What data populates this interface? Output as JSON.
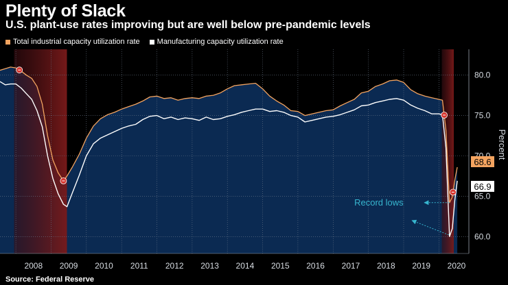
{
  "header": {
    "title": "Plenty of Slack",
    "subtitle": "U.S. plant-use rates improving but are well below pre-pandemic levels"
  },
  "source": "Source: Federal Reserve",
  "colors": {
    "background": "#000000",
    "plot_fill": "#0b2a52",
    "total_line": "#f4a460",
    "manufacturing_line": "#ffffff",
    "recession_band": "#7a1a1a",
    "annotation": "#37b6cf",
    "marker": "#d6362f"
  },
  "chart_data": {
    "type": "line",
    "title": "Plenty of Slack",
    "subtitle": "U.S. plant-use rates improving but are well below pre-pandemic levels",
    "ylabel": "Percent",
    "xlabel": "",
    "ylim": [
      57.9,
      83.2
    ],
    "xlim": [
      2007.55,
      2020.85
    ],
    "yticks": [
      60.0,
      65.0,
      70.0,
      75.0,
      80.0
    ],
    "ytick_labels": [
      "60.0",
      "65.0",
      "70.0",
      "75.0",
      "80.0"
    ],
    "x_categories": [
      "2008",
      "2009",
      "2010",
      "2011",
      "2012",
      "2013",
      "2014",
      "2015",
      "2016",
      "2017",
      "2018",
      "2019",
      "2020"
    ],
    "grid": true,
    "legend_position": "top-left",
    "recessions": [
      {
        "start": 2007.95,
        "end": 2009.45
      },
      {
        "start": 2020.08,
        "end": 2020.42
      }
    ],
    "series": [
      {
        "name": "Total industrial capacity utilization rate",
        "color": "#f4a460",
        "points": [
          [
            2007.55,
            80.6
          ],
          [
            2007.7,
            80.8
          ],
          [
            2007.85,
            81.0
          ],
          [
            2008.0,
            80.9
          ],
          [
            2008.15,
            80.5
          ],
          [
            2008.3,
            80.0
          ],
          [
            2008.45,
            79.6
          ],
          [
            2008.6,
            78.6
          ],
          [
            2008.75,
            76.4
          ],
          [
            2008.9,
            72.5
          ],
          [
            2009.05,
            69.5
          ],
          [
            2009.2,
            67.9
          ],
          [
            2009.35,
            66.9
          ],
          [
            2009.45,
            67.5
          ],
          [
            2009.6,
            68.6
          ],
          [
            2009.8,
            70.2
          ],
          [
            2010.0,
            72.2
          ],
          [
            2010.2,
            73.7
          ],
          [
            2010.4,
            74.6
          ],
          [
            2010.6,
            75.1
          ],
          [
            2010.8,
            75.4
          ],
          [
            2011.0,
            75.8
          ],
          [
            2011.2,
            76.1
          ],
          [
            2011.4,
            76.4
          ],
          [
            2011.6,
            76.8
          ],
          [
            2011.8,
            77.3
          ],
          [
            2012.0,
            77.4
          ],
          [
            2012.2,
            77.1
          ],
          [
            2012.4,
            77.2
          ],
          [
            2012.6,
            76.9
          ],
          [
            2012.8,
            77.1
          ],
          [
            2013.0,
            77.2
          ],
          [
            2013.2,
            77.1
          ],
          [
            2013.4,
            77.4
          ],
          [
            2013.6,
            77.5
          ],
          [
            2013.8,
            77.8
          ],
          [
            2014.0,
            78.3
          ],
          [
            2014.2,
            78.7
          ],
          [
            2014.4,
            78.8
          ],
          [
            2014.6,
            78.9
          ],
          [
            2014.8,
            79.0
          ],
          [
            2015.0,
            78.3
          ],
          [
            2015.2,
            77.4
          ],
          [
            2015.4,
            76.8
          ],
          [
            2015.6,
            76.3
          ],
          [
            2015.8,
            75.6
          ],
          [
            2016.0,
            75.5
          ],
          [
            2016.2,
            75.0
          ],
          [
            2016.4,
            75.2
          ],
          [
            2016.6,
            75.4
          ],
          [
            2016.8,
            75.6
          ],
          [
            2017.0,
            75.7
          ],
          [
            2017.2,
            76.2
          ],
          [
            2017.4,
            76.6
          ],
          [
            2017.6,
            77.0
          ],
          [
            2017.8,
            77.8
          ],
          [
            2018.0,
            78.0
          ],
          [
            2018.2,
            78.6
          ],
          [
            2018.4,
            78.9
          ],
          [
            2018.6,
            79.3
          ],
          [
            2018.8,
            79.4
          ],
          [
            2019.0,
            79.1
          ],
          [
            2019.2,
            78.2
          ],
          [
            2019.4,
            77.7
          ],
          [
            2019.6,
            77.4
          ],
          [
            2019.8,
            77.2
          ],
          [
            2020.0,
            77.0
          ],
          [
            2020.1,
            76.9
          ],
          [
            2020.2,
            73.2
          ],
          [
            2020.3,
            64.2
          ],
          [
            2020.38,
            64.9
          ],
          [
            2020.45,
            67.0
          ],
          [
            2020.52,
            68.6
          ]
        ]
      },
      {
        "name": "Manufacturing capacity utilization rate",
        "color": "#ffffff",
        "points": [
          [
            2007.55,
            79.2
          ],
          [
            2007.7,
            78.8
          ],
          [
            2007.85,
            78.9
          ],
          [
            2008.0,
            78.9
          ],
          [
            2008.15,
            78.4
          ],
          [
            2008.3,
            77.7
          ],
          [
            2008.45,
            77.0
          ],
          [
            2008.6,
            75.6
          ],
          [
            2008.75,
            73.6
          ],
          [
            2008.9,
            70.0
          ],
          [
            2009.05,
            67.2
          ],
          [
            2009.2,
            65.3
          ],
          [
            2009.35,
            64.0
          ],
          [
            2009.45,
            63.7
          ],
          [
            2009.6,
            65.4
          ],
          [
            2009.8,
            67.6
          ],
          [
            2010.0,
            70.0
          ],
          [
            2010.2,
            71.5
          ],
          [
            2010.4,
            72.2
          ],
          [
            2010.6,
            72.6
          ],
          [
            2010.8,
            73.0
          ],
          [
            2011.0,
            73.4
          ],
          [
            2011.2,
            73.7
          ],
          [
            2011.4,
            73.9
          ],
          [
            2011.6,
            74.5
          ],
          [
            2011.8,
            74.9
          ],
          [
            2012.0,
            75.0
          ],
          [
            2012.2,
            74.6
          ],
          [
            2012.4,
            74.8
          ],
          [
            2012.6,
            74.5
          ],
          [
            2012.8,
            74.7
          ],
          [
            2013.0,
            74.6
          ],
          [
            2013.2,
            74.4
          ],
          [
            2013.4,
            74.8
          ],
          [
            2013.6,
            74.5
          ],
          [
            2013.8,
            74.6
          ],
          [
            2014.0,
            74.9
          ],
          [
            2014.2,
            75.1
          ],
          [
            2014.4,
            75.4
          ],
          [
            2014.6,
            75.6
          ],
          [
            2014.8,
            75.8
          ],
          [
            2015.0,
            75.8
          ],
          [
            2015.2,
            75.5
          ],
          [
            2015.4,
            75.6
          ],
          [
            2015.6,
            75.4
          ],
          [
            2015.8,
            75.0
          ],
          [
            2016.0,
            74.8
          ],
          [
            2016.2,
            74.2
          ],
          [
            2016.4,
            74.4
          ],
          [
            2016.6,
            74.6
          ],
          [
            2016.8,
            74.8
          ],
          [
            2017.0,
            74.9
          ],
          [
            2017.2,
            75.1
          ],
          [
            2017.4,
            75.4
          ],
          [
            2017.6,
            75.7
          ],
          [
            2017.8,
            76.2
          ],
          [
            2018.0,
            76.3
          ],
          [
            2018.2,
            76.6
          ],
          [
            2018.4,
            76.8
          ],
          [
            2018.6,
            77.0
          ],
          [
            2018.8,
            77.1
          ],
          [
            2019.0,
            76.9
          ],
          [
            2019.2,
            76.3
          ],
          [
            2019.4,
            75.9
          ],
          [
            2019.6,
            75.6
          ],
          [
            2019.8,
            75.2
          ],
          [
            2020.0,
            75.2
          ],
          [
            2020.1,
            75.1
          ],
          [
            2020.2,
            71.0
          ],
          [
            2020.3,
            60.0
          ],
          [
            2020.38,
            61.0
          ],
          [
            2020.45,
            64.5
          ],
          [
            2020.52,
            66.9
          ]
        ]
      }
    ],
    "end_labels": [
      {
        "text": "68.6",
        "value": 68.6,
        "series": 0
      },
      {
        "text": "66.9",
        "value": 66.9,
        "series": 1
      }
    ],
    "annotations": [
      {
        "text": "Record lows",
        "x": 2017.6,
        "y": 64.2
      }
    ]
  }
}
